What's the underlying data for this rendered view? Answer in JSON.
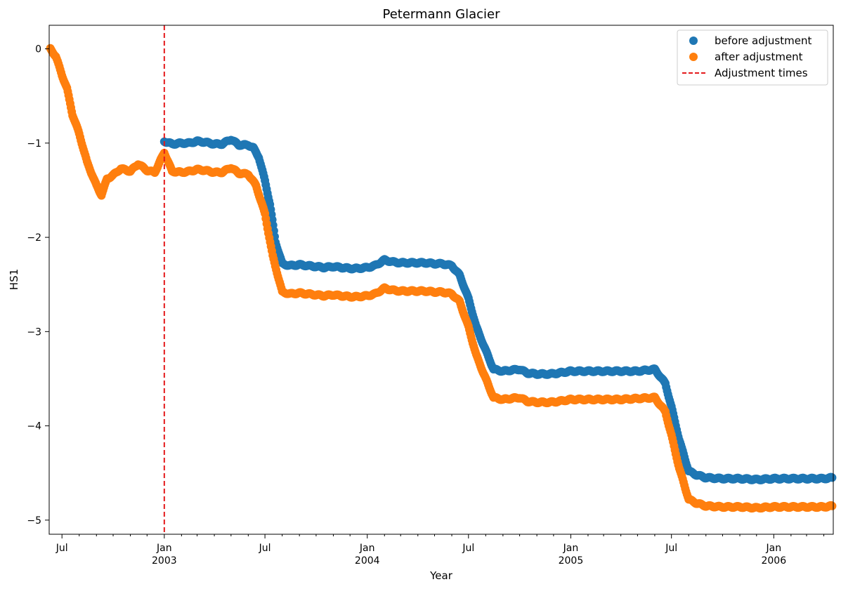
{
  "chart_data": {
    "type": "scatter",
    "title": "Petermann Glacier",
    "xlabel": "Year",
    "ylabel": "HS1",
    "xlim": [
      "2002-06-08",
      "2006-04-18"
    ],
    "ylim": [
      -5.15,
      0.25
    ],
    "grid": false,
    "legend_position": "top-right",
    "y_ticks": [
      {
        "value": 0,
        "label": "0"
      },
      {
        "value": -1,
        "label": "−1"
      },
      {
        "value": -2,
        "label": "−2"
      },
      {
        "value": -3,
        "label": "−3"
      },
      {
        "value": -4,
        "label": "−4"
      },
      {
        "value": -5,
        "label": "−5"
      }
    ],
    "x_major_ticks": [
      {
        "date": "2002-07-01",
        "label": "Jul",
        "sublabel": ""
      },
      {
        "date": "2003-01-01",
        "label": "Jan",
        "sublabel": "2003"
      },
      {
        "date": "2003-07-01",
        "label": "Jul",
        "sublabel": ""
      },
      {
        "date": "2004-01-01",
        "label": "Jan",
        "sublabel": "2004"
      },
      {
        "date": "2004-07-01",
        "label": "Jul",
        "sublabel": ""
      },
      {
        "date": "2005-01-01",
        "label": "Jan",
        "sublabel": "2005"
      },
      {
        "date": "2005-07-01",
        "label": "Jul",
        "sublabel": ""
      },
      {
        "date": "2006-01-01",
        "label": "Jan",
        "sublabel": "2006"
      }
    ],
    "x_minor_ticks": [
      "2002-08-01",
      "2002-09-01",
      "2002-10-01",
      "2002-11-01",
      "2002-12-01",
      "2003-02-01",
      "2003-03-01",
      "2003-04-01",
      "2003-05-01",
      "2003-06-01",
      "2003-08-01",
      "2003-09-01",
      "2003-10-01",
      "2003-11-01",
      "2003-12-01",
      "2004-02-01",
      "2004-03-01",
      "2004-04-01",
      "2004-05-01",
      "2004-06-01",
      "2004-08-01",
      "2004-09-01",
      "2004-10-01",
      "2004-11-01",
      "2004-12-01",
      "2005-02-01",
      "2005-03-01",
      "2005-04-01",
      "2005-05-01",
      "2005-06-01",
      "2005-08-01",
      "2005-09-01",
      "2005-10-01",
      "2005-11-01",
      "2005-12-01",
      "2006-02-01",
      "2006-03-01",
      "2006-04-01"
    ],
    "adjustment_times": [
      "2003-01-01"
    ],
    "series": [
      {
        "name": "before adjustment",
        "color": "#1f77b4",
        "kind": "scatter",
        "points": [
          [
            "2003-01-01",
            -0.98
          ],
          [
            "2003-01-15",
            -1.01
          ],
          [
            "2003-02-01",
            -1.0
          ],
          [
            "2003-02-15",
            -1.0
          ],
          [
            "2003-03-01",
            -0.98
          ],
          [
            "2003-03-15",
            -0.99
          ],
          [
            "2003-04-01",
            -1.01
          ],
          [
            "2003-04-15",
            -1.01
          ],
          [
            "2003-05-01",
            -0.96
          ],
          [
            "2003-05-15",
            -1.02
          ],
          [
            "2003-06-01",
            -1.02
          ],
          [
            "2003-06-10",
            -1.05
          ],
          [
            "2003-06-20",
            -1.15
          ],
          [
            "2003-07-01",
            -1.4
          ],
          [
            "2003-07-10",
            -1.65
          ],
          [
            "2003-07-20",
            -2.05
          ],
          [
            "2003-08-01",
            -2.28
          ],
          [
            "2003-08-15",
            -2.3
          ],
          [
            "2003-09-01",
            -2.29
          ],
          [
            "2003-09-15",
            -2.3
          ],
          [
            "2003-10-01",
            -2.31
          ],
          [
            "2003-10-15",
            -2.32
          ],
          [
            "2003-11-01",
            -2.31
          ],
          [
            "2003-11-15",
            -2.32
          ],
          [
            "2003-12-01",
            -2.33
          ],
          [
            "2003-12-15",
            -2.33
          ],
          [
            "2004-01-01",
            -2.32
          ],
          [
            "2004-01-15",
            -2.3
          ],
          [
            "2004-02-01",
            -2.24
          ],
          [
            "2004-02-15",
            -2.26
          ],
          [
            "2004-03-01",
            -2.27
          ],
          [
            "2004-03-15",
            -2.27
          ],
          [
            "2004-04-01",
            -2.27
          ],
          [
            "2004-04-15",
            -2.27
          ],
          [
            "2004-05-01",
            -2.28
          ],
          [
            "2004-05-15",
            -2.28
          ],
          [
            "2004-06-01",
            -2.3
          ],
          [
            "2004-06-15",
            -2.4
          ],
          [
            "2004-07-01",
            -2.65
          ],
          [
            "2004-07-15",
            -2.95
          ],
          [
            "2004-08-01",
            -3.2
          ],
          [
            "2004-08-15",
            -3.4
          ],
          [
            "2004-09-01",
            -3.42
          ],
          [
            "2004-09-15",
            -3.41
          ],
          [
            "2004-10-01",
            -3.4
          ],
          [
            "2004-10-15",
            -3.44
          ],
          [
            "2004-11-01",
            -3.45
          ],
          [
            "2004-11-25",
            -3.45
          ],
          [
            "2004-12-10",
            -3.44
          ],
          [
            "2005-01-01",
            -3.42
          ],
          [
            "2005-02-01",
            -3.42
          ],
          [
            "2005-03-01",
            -3.42
          ],
          [
            "2005-04-01",
            -3.42
          ],
          [
            "2005-05-01",
            -3.42
          ],
          [
            "2005-06-01",
            -3.4
          ],
          [
            "2005-06-20",
            -3.55
          ],
          [
            "2005-07-01",
            -3.8
          ],
          [
            "2005-07-15",
            -4.15
          ],
          [
            "2005-08-01",
            -4.48
          ],
          [
            "2005-08-15",
            -4.52
          ],
          [
            "2005-09-01",
            -4.55
          ],
          [
            "2005-10-01",
            -4.56
          ],
          [
            "2005-11-01",
            -4.56
          ],
          [
            "2005-12-01",
            -4.57
          ],
          [
            "2006-01-01",
            -4.56
          ],
          [
            "2006-02-01",
            -4.56
          ],
          [
            "2006-03-01",
            -4.56
          ],
          [
            "2006-04-01",
            -4.56
          ],
          [
            "2006-04-16",
            -4.55
          ]
        ]
      },
      {
        "name": "after adjustment",
        "color": "#ff7f0e",
        "kind": "scatter",
        "points": [
          [
            "2002-06-10",
            0.0
          ],
          [
            "2002-06-20",
            -0.08
          ],
          [
            "2002-07-01",
            -0.28
          ],
          [
            "2002-07-10",
            -0.42
          ],
          [
            "2002-07-20",
            -0.7
          ],
          [
            "2002-08-01",
            -0.9
          ],
          [
            "2002-08-15",
            -1.2
          ],
          [
            "2002-09-01",
            -1.45
          ],
          [
            "2002-09-10",
            -1.55
          ],
          [
            "2002-09-20",
            -1.38
          ],
          [
            "2002-10-01",
            -1.34
          ],
          [
            "2002-10-15",
            -1.27
          ],
          [
            "2002-11-01",
            -1.3
          ],
          [
            "2002-11-15",
            -1.22
          ],
          [
            "2002-12-01",
            -1.29
          ],
          [
            "2002-12-15",
            -1.31
          ],
          [
            "2003-01-01",
            -1.1
          ],
          [
            "2003-01-15",
            -1.3
          ],
          [
            "2003-02-01",
            -1.31
          ],
          [
            "2003-02-15",
            -1.3
          ],
          [
            "2003-03-01",
            -1.28
          ],
          [
            "2003-03-15",
            -1.29
          ],
          [
            "2003-04-01",
            -1.31
          ],
          [
            "2003-04-15",
            -1.31
          ],
          [
            "2003-05-01",
            -1.26
          ],
          [
            "2003-05-15",
            -1.32
          ],
          [
            "2003-06-01",
            -1.33
          ],
          [
            "2003-06-15",
            -1.45
          ],
          [
            "2003-07-01",
            -1.75
          ],
          [
            "2003-07-15",
            -2.2
          ],
          [
            "2003-08-01",
            -2.58
          ],
          [
            "2003-08-15",
            -2.6
          ],
          [
            "2003-09-01",
            -2.59
          ],
          [
            "2003-09-15",
            -2.6
          ],
          [
            "2003-10-01",
            -2.61
          ],
          [
            "2003-10-15",
            -2.62
          ],
          [
            "2003-11-01",
            -2.61
          ],
          [
            "2003-11-15",
            -2.62
          ],
          [
            "2003-12-01",
            -2.63
          ],
          [
            "2003-12-15",
            -2.63
          ],
          [
            "2004-01-01",
            -2.62
          ],
          [
            "2004-01-15",
            -2.6
          ],
          [
            "2004-02-01",
            -2.54
          ],
          [
            "2004-02-15",
            -2.56
          ],
          [
            "2004-03-01",
            -2.57
          ],
          [
            "2004-03-15",
            -2.57
          ],
          [
            "2004-04-01",
            -2.57
          ],
          [
            "2004-04-15",
            -2.57
          ],
          [
            "2004-05-01",
            -2.58
          ],
          [
            "2004-05-15",
            -2.58
          ],
          [
            "2004-06-01",
            -2.6
          ],
          [
            "2004-06-15",
            -2.68
          ],
          [
            "2004-07-01",
            -2.95
          ],
          [
            "2004-07-15",
            -3.25
          ],
          [
            "2004-08-01",
            -3.5
          ],
          [
            "2004-08-15",
            -3.7
          ],
          [
            "2004-09-01",
            -3.72
          ],
          [
            "2004-09-15",
            -3.71
          ],
          [
            "2004-10-01",
            -3.7
          ],
          [
            "2004-10-15",
            -3.74
          ],
          [
            "2004-11-01",
            -3.75
          ],
          [
            "2004-11-25",
            -3.75
          ],
          [
            "2004-12-10",
            -3.74
          ],
          [
            "2005-01-01",
            -3.72
          ],
          [
            "2005-02-01",
            -3.72
          ],
          [
            "2005-03-01",
            -3.72
          ],
          [
            "2005-04-01",
            -3.72
          ],
          [
            "2005-05-01",
            -3.71
          ],
          [
            "2005-06-01",
            -3.7
          ],
          [
            "2005-06-20",
            -3.85
          ],
          [
            "2005-07-01",
            -4.1
          ],
          [
            "2005-07-15",
            -4.45
          ],
          [
            "2005-08-01",
            -4.78
          ],
          [
            "2005-08-15",
            -4.82
          ],
          [
            "2005-09-01",
            -4.85
          ],
          [
            "2005-10-01",
            -4.86
          ],
          [
            "2005-11-01",
            -4.86
          ],
          [
            "2005-12-01",
            -4.87
          ],
          [
            "2006-01-01",
            -4.86
          ],
          [
            "2006-02-01",
            -4.86
          ],
          [
            "2006-03-01",
            -4.86
          ],
          [
            "2006-04-01",
            -4.86
          ],
          [
            "2006-04-16",
            -4.85
          ]
        ]
      },
      {
        "name": "Adjustment times",
        "color": "#e41a1c",
        "kind": "vline"
      }
    ]
  }
}
